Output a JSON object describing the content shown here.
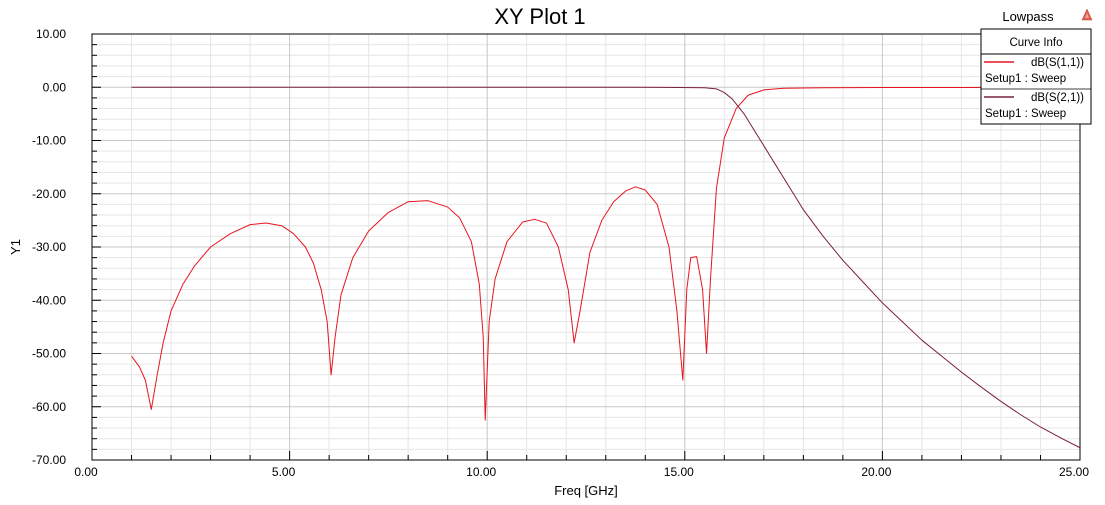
{
  "chart_data": {
    "type": "line",
    "title": "XY Plot 1",
    "project_label": "Lowpass",
    "xlabel": "Freq [GHz]",
    "ylabel": "Y1",
    "xlim": [
      0,
      25
    ],
    "ylim": [
      -70,
      10
    ],
    "x_ticks": [
      "0.00",
      "5.00",
      "10.00",
      "15.00",
      "20.00",
      "25.00"
    ],
    "y_ticks": [
      "10.00",
      "0.00",
      "-10.00",
      "-20.00",
      "-30.00",
      "-40.00",
      "-50.00",
      "-60.00",
      "-70.00"
    ],
    "grid": true,
    "legend": {
      "header": "Curve Info",
      "placement": "top-right",
      "entries": [
        {
          "name": "dB(S(1,1))",
          "setup": "Setup1 : Sweep"
        },
        {
          "name": "dB(S(2,1))",
          "setup": "Setup1 : Sweep"
        }
      ]
    },
    "colors": {
      "s11": "#e8141e",
      "s21": "#7a1e40",
      "grid_major": "#c8c8c8",
      "grid_minor": "#e6e6e6"
    },
    "series": [
      {
        "name": "dB(S(1,1))",
        "x": [
          1.0,
          1.2,
          1.35,
          1.5,
          1.65,
          1.8,
          2.0,
          2.3,
          2.6,
          3.0,
          3.5,
          4.0,
          4.4,
          4.8,
          5.1,
          5.4,
          5.6,
          5.8,
          5.95,
          6.05,
          6.15,
          6.3,
          6.6,
          7.0,
          7.5,
          8.0,
          8.5,
          9.0,
          9.3,
          9.6,
          9.8,
          9.9,
          9.95,
          10.05,
          10.2,
          10.5,
          10.9,
          11.2,
          11.5,
          11.8,
          12.05,
          12.2,
          12.35,
          12.6,
          12.9,
          13.2,
          13.5,
          13.75,
          14.0,
          14.3,
          14.6,
          14.8,
          14.95,
          15.05,
          15.15,
          15.3,
          15.45,
          15.55,
          15.65,
          15.8,
          16.0,
          16.3,
          16.6,
          17.0,
          17.5,
          18.5,
          20.0,
          22.0,
          24.0,
          25.0
        ],
        "y": [
          -50.5,
          -52.5,
          -55.0,
          -60.5,
          -54.0,
          -48.0,
          -42.0,
          -37.0,
          -33.5,
          -30.0,
          -27.5,
          -25.8,
          -25.5,
          -26.0,
          -27.5,
          -30.0,
          -33.0,
          -38.0,
          -44.0,
          -54.0,
          -47.0,
          -39.0,
          -32.0,
          -27.0,
          -23.5,
          -21.5,
          -21.3,
          -22.5,
          -24.5,
          -29.0,
          -37.0,
          -47.0,
          -62.5,
          -44.0,
          -36.0,
          -29.0,
          -25.3,
          -24.8,
          -25.5,
          -30.0,
          -38.0,
          -48.0,
          -42.0,
          -31.0,
          -25.0,
          -21.5,
          -19.5,
          -18.7,
          -19.3,
          -22.0,
          -30.0,
          -42.0,
          -55.0,
          -38.0,
          -32.0,
          -31.8,
          -38.0,
          -50.0,
          -36.0,
          -19.0,
          -9.5,
          -4.0,
          -1.5,
          -0.5,
          -0.2,
          -0.1,
          -0.05,
          -0.05,
          -0.02,
          0.0
        ]
      },
      {
        "name": "dB(S(2,1))",
        "x": [
          1.0,
          3.0,
          5.0,
          7.0,
          9.0,
          11.0,
          13.0,
          14.5,
          15.5,
          15.8,
          16.0,
          16.2,
          16.5,
          17.0,
          17.5,
          18.0,
          18.5,
          19.0,
          19.5,
          20.0,
          20.5,
          21.0,
          21.5,
          22.0,
          22.5,
          23.0,
          23.5,
          24.0,
          24.5,
          25.0
        ],
        "y": [
          0.0,
          0.0,
          0.0,
          0.0,
          0.0,
          0.0,
          0.0,
          -0.02,
          -0.1,
          -0.3,
          -1.0,
          -2.2,
          -5.0,
          -11.0,
          -17.0,
          -23.0,
          -28.0,
          -32.5,
          -36.5,
          -40.5,
          -44.0,
          -47.5,
          -50.5,
          -53.5,
          -56.3,
          -59.0,
          -61.5,
          -63.8,
          -65.8,
          -67.7
        ]
      }
    ]
  }
}
